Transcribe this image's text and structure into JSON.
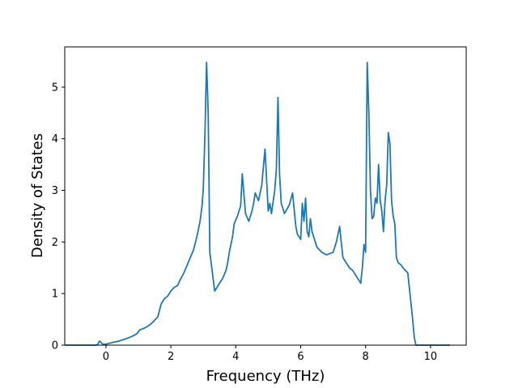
{
  "chart_data": {
    "type": "line",
    "title": "",
    "xlabel": "Frequency (THz)",
    "ylabel": "Density of States",
    "xlim": [
      -1.27,
      11.1
    ],
    "ylim": [
      0,
      5.78
    ],
    "xticks": [
      0,
      2,
      4,
      6,
      8,
      10
    ],
    "yticks": [
      0,
      1,
      2,
      3,
      4,
      5
    ],
    "grid": false,
    "series": [
      {
        "name": "",
        "color": "#1f77b4",
        "x": [
          -1.25,
          -0.3,
          -0.25,
          -0.2,
          -0.1,
          0.0,
          0.2,
          0.4,
          0.6,
          0.8,
          0.95,
          1.05,
          1.15,
          1.3,
          1.45,
          1.6,
          1.7,
          1.8,
          1.9,
          2.0,
          2.1,
          2.2,
          2.3,
          2.4,
          2.5,
          2.6,
          2.7,
          2.8,
          2.9,
          2.96,
          3.0,
          3.05,
          3.1,
          3.15,
          3.2,
          3.35,
          3.5,
          3.6,
          3.7,
          3.75,
          3.8,
          3.9,
          3.95,
          4.05,
          4.15,
          4.2,
          4.3,
          4.4,
          4.5,
          4.55,
          4.6,
          4.7,
          4.8,
          4.9,
          5.0,
          5.05,
          5.1,
          5.2,
          5.25,
          5.3,
          5.35,
          5.4,
          5.5,
          5.65,
          5.75,
          5.85,
          5.9,
          6.0,
          6.05,
          6.1,
          6.15,
          6.2,
          6.25,
          6.3,
          6.35,
          6.4,
          6.5,
          6.65,
          6.8,
          7.0,
          7.1,
          7.2,
          7.3,
          7.4,
          7.5,
          7.6,
          7.7,
          7.8,
          7.85,
          7.9,
          7.95,
          8.0,
          8.05,
          8.1,
          8.15,
          8.2,
          8.25,
          8.3,
          8.35,
          8.4,
          8.45,
          8.5,
          8.55,
          8.6,
          8.65,
          8.7,
          8.75,
          8.8,
          8.85,
          8.9,
          8.95,
          9.0,
          9.1,
          9.15,
          9.3,
          9.45,
          9.5,
          9.55,
          9.6,
          9.65,
          9.7,
          10.0,
          10.6
        ],
        "values": [
          0.0,
          0.0,
          0.02,
          0.08,
          0.02,
          0.02,
          0.05,
          0.08,
          0.12,
          0.17,
          0.22,
          0.3,
          0.32,
          0.37,
          0.45,
          0.55,
          0.8,
          0.9,
          0.95,
          1.05,
          1.12,
          1.15,
          1.28,
          1.4,
          1.55,
          1.7,
          1.85,
          2.1,
          2.4,
          2.7,
          3.05,
          4.1,
          5.48,
          4.5,
          1.8,
          1.05,
          1.2,
          1.3,
          1.45,
          1.6,
          1.8,
          2.1,
          2.35,
          2.5,
          2.7,
          3.32,
          2.55,
          2.4,
          2.6,
          2.75,
          2.95,
          2.8,
          3.1,
          3.8,
          2.6,
          2.75,
          2.55,
          3.0,
          3.4,
          4.8,
          3.3,
          2.75,
          2.55,
          2.72,
          2.95,
          2.3,
          2.15,
          2.05,
          2.75,
          2.4,
          2.85,
          2.2,
          2.1,
          2.45,
          2.2,
          2.1,
          1.9,
          1.8,
          1.75,
          1.8,
          2.0,
          2.3,
          1.7,
          1.6,
          1.5,
          1.45,
          1.35,
          1.25,
          1.2,
          1.5,
          1.95,
          1.8,
          5.48,
          4.5,
          3.0,
          2.45,
          2.5,
          2.85,
          2.75,
          3.5,
          2.8,
          2.6,
          2.2,
          2.8,
          3.1,
          4.12,
          3.9,
          2.8,
          2.5,
          2.35,
          1.7,
          1.6,
          1.55,
          1.5,
          1.4,
          0.5,
          0.15,
          0.0,
          0.0,
          0.0,
          0.0,
          0.0,
          0.0
        ]
      }
    ]
  }
}
